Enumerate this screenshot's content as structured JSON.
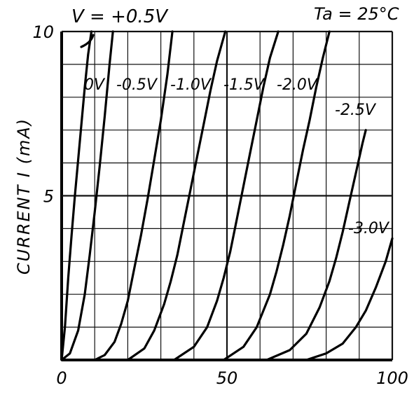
{
  "chart_data": {
    "type": "line",
    "title": "",
    "xlabel": "",
    "ylabel": "CURRENT I (mA)",
    "top_left_label": "V = +0.5V",
    "top_right_label": "Ta = 25°C",
    "xlim": [
      0,
      100
    ],
    "ylim": [
      0,
      10
    ],
    "x_ticks": [
      "0",
      "50",
      "100"
    ],
    "y_ticks": [
      "10",
      "5"
    ],
    "x_tick_values": [
      0,
      50,
      100
    ],
    "y_tick_values": [
      10,
      5
    ],
    "grid": true,
    "series": [
      {
        "name": "+0.5V",
        "x": [
          0.0,
          1.0,
          2.0,
          3.0,
          4.0,
          5.0,
          6.0,
          7.0,
          8.0,
          9.0
        ],
        "y": [
          0.0,
          1.0,
          2.5,
          3.8,
          5.0,
          6.1,
          7.2,
          8.3,
          9.3,
          10.0
        ]
      },
      {
        "name": "0V",
        "x": [
          0.0,
          2.5,
          5.0,
          7.0,
          8.5,
          10.0,
          11.5,
          13.0,
          14.5,
          15.5
        ],
        "y": [
          0.0,
          0.2,
          0.9,
          2.0,
          3.2,
          4.5,
          5.9,
          7.4,
          9.0,
          10.0
        ]
      },
      {
        "name": "-0.5V",
        "x": [
          10.0,
          13.0,
          16.0,
          18.0,
          20.0,
          22.0,
          24.0,
          26.0,
          28.0,
          30.0,
          32.0,
          33.5
        ],
        "y": [
          0.0,
          0.15,
          0.55,
          1.1,
          1.8,
          2.8,
          3.8,
          4.9,
          6.1,
          7.3,
          8.7,
          10.0
        ]
      },
      {
        "name": "-1.0V",
        "x": [
          20.0,
          25.0,
          28.0,
          31.0,
          33.0,
          35.0,
          37.0,
          39.0,
          41.0,
          43.0,
          45.0,
          47.0,
          49.5
        ],
        "y": [
          0.0,
          0.35,
          0.9,
          1.7,
          2.4,
          3.2,
          4.2,
          5.2,
          6.2,
          7.2,
          8.2,
          9.1,
          10.0
        ]
      },
      {
        "name": "-1.5V",
        "x": [
          34.0,
          40.0,
          44.0,
          47.0,
          49.0,
          51.0,
          53.0,
          55.0,
          57.0,
          59.0,
          61.0,
          63.0,
          65.5
        ],
        "y": [
          0.0,
          0.4,
          1.0,
          1.8,
          2.5,
          3.3,
          4.3,
          5.3,
          6.3,
          7.3,
          8.3,
          9.2,
          10.0
        ]
      },
      {
        "name": "-2.0V",
        "x": [
          49.0,
          55.0,
          59.0,
          63.0,
          65.0,
          67.0,
          69.0,
          71.0,
          73.0,
          75.0,
          77.0,
          79.0,
          81.0
        ],
        "y": [
          0.0,
          0.4,
          1.0,
          2.0,
          2.7,
          3.5,
          4.4,
          5.4,
          6.4,
          7.3,
          8.3,
          9.2,
          10.0
        ]
      },
      {
        "name": "-2.5V",
        "x": [
          62.0,
          69.0,
          74.0,
          78.0,
          81.0,
          83.0,
          85.0,
          87.0,
          89.0,
          91.0,
          92.0
        ],
        "y": [
          0.0,
          0.3,
          0.8,
          1.6,
          2.4,
          3.1,
          3.9,
          4.8,
          5.7,
          6.6,
          7.0
        ]
      },
      {
        "name": "-3.0V",
        "x": [
          74.0,
          80.0,
          85.0,
          89.0,
          92.0,
          95.0,
          98.0,
          100.0
        ],
        "y": [
          0.0,
          0.2,
          0.5,
          1.0,
          1.5,
          2.2,
          3.0,
          3.7
        ]
      }
    ],
    "curve_labels": [
      "0V",
      "-0.5V",
      "-1.0V",
      "-1.5V",
      "-2.0V",
      "-2.5V",
      "-3.0V"
    ]
  }
}
